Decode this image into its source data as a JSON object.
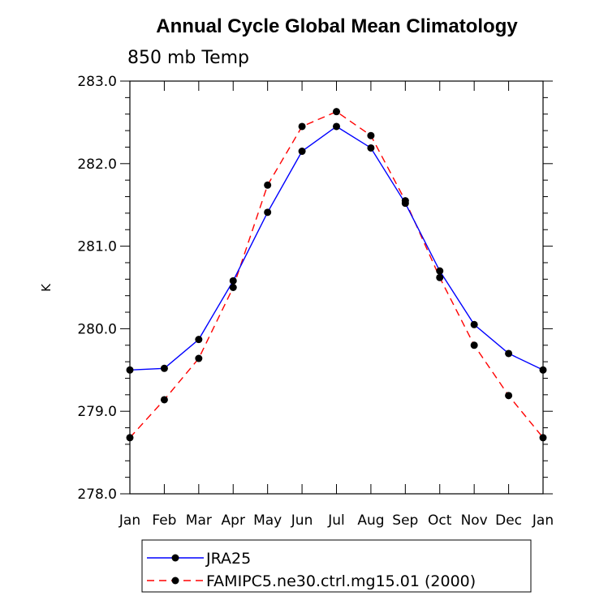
{
  "chart_data": {
    "type": "line",
    "title": "Annual Cycle Global Mean Climatology",
    "subtitle": "850 mb Temp",
    "xlabel": "",
    "ylabel": "K",
    "categories": [
      "Jan",
      "Feb",
      "Mar",
      "Apr",
      "May",
      "Jun",
      "Jul",
      "Aug",
      "Sep",
      "Oct",
      "Nov",
      "Dec",
      "Jan"
    ],
    "ylim": [
      278.0,
      283.0
    ],
    "yticks": [
      "278.0",
      "279.0",
      "280.0",
      "281.0",
      "282.0",
      "283.0"
    ],
    "grid": false,
    "legend_position": "bottom",
    "series": [
      {
        "name": "JRA25",
        "color": "#0000ff",
        "line_style": "solid",
        "values": [
          279.5,
          279.52,
          279.87,
          280.58,
          281.41,
          282.15,
          282.45,
          282.19,
          281.52,
          280.7,
          280.05,
          279.7,
          279.5
        ]
      },
      {
        "name": "FAMIPC5.ne30.ctrl.mg15.01 (2000)",
        "color": "#ff0000",
        "line_style": "dashed",
        "values": [
          278.68,
          279.14,
          279.64,
          280.5,
          281.74,
          282.45,
          282.63,
          282.34,
          281.55,
          280.62,
          279.8,
          279.19,
          278.68
        ]
      }
    ]
  }
}
